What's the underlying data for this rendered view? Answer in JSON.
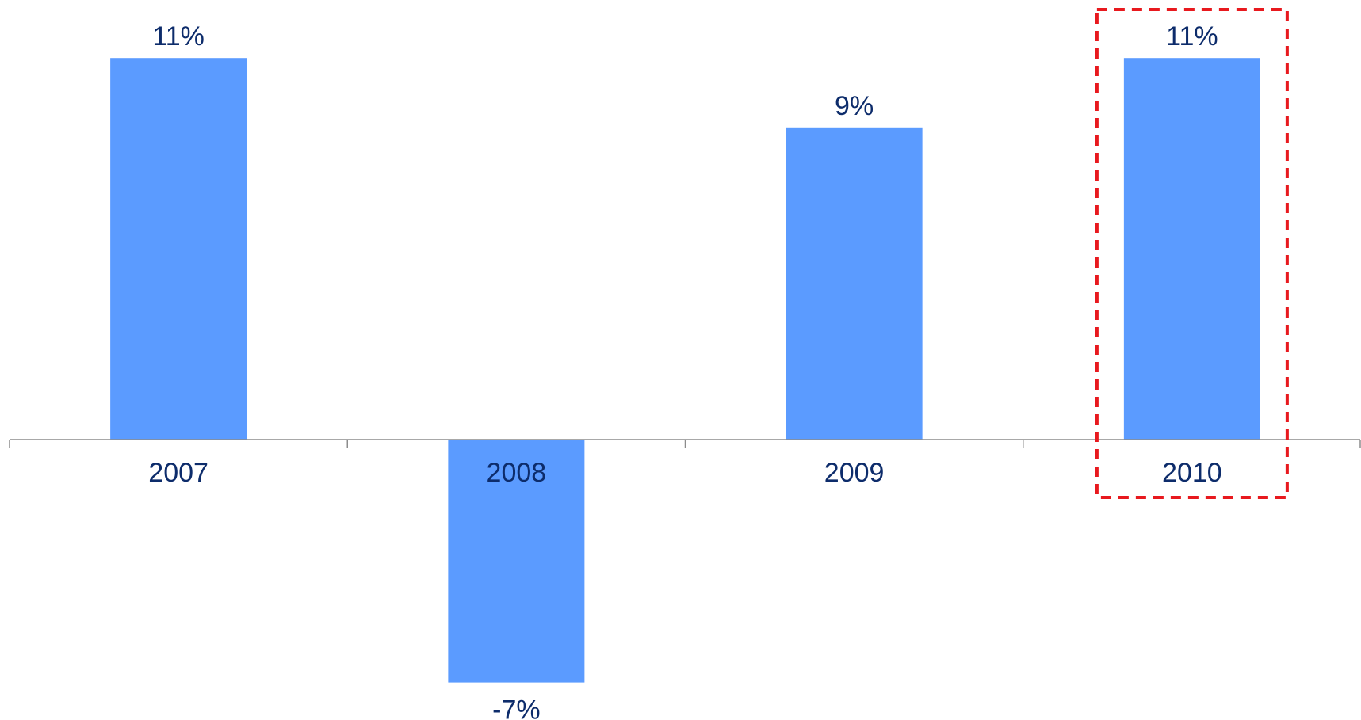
{
  "chart_data": {
    "type": "bar",
    "title": "",
    "xlabel": "",
    "ylabel": "",
    "categories": [
      "2007",
      "2008",
      "2009",
      "2010"
    ],
    "values": [
      11,
      -7,
      9,
      11
    ],
    "value_labels": [
      "11%",
      "-7%",
      "9%",
      "11%"
    ],
    "ylim": [
      -7,
      11
    ],
    "grid": false,
    "legend": "none",
    "highlighted_category": "2010",
    "colors": {
      "bar": "#5B9BFF",
      "label_text": "#0D2C6B",
      "axis": "#8C8C8C",
      "highlight_box": "#E8191E"
    }
  }
}
